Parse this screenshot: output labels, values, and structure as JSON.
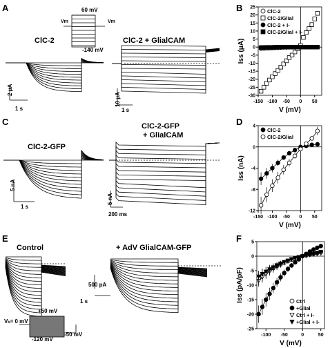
{
  "panels": {
    "A": {
      "letter": "A",
      "label_left": "ClC-2",
      "label_right": "ClC-2 + GlialCAM",
      "protocol": {
        "top": "60 mV",
        "bottom": "-140 mV",
        "vm_left": "Vm",
        "vm_right": "Vm"
      },
      "scale_left": {
        "y": "2 μA",
        "x": "1 s"
      },
      "scale_right": {
        "y": "10 μA",
        "x": "1 s"
      }
    },
    "B": {
      "letter": "B",
      "ylabel": "Iss (μA)",
      "xlabel": "V (mV)",
      "legend": [
        "ClC-2",
        "ClC-2/Glial",
        "ClC-2 + I-",
        "ClC-2/Glial + I-"
      ]
    },
    "C": {
      "letter": "C",
      "label_left": "ClC-2-GFP",
      "label_right_1": "ClC-2-GFP",
      "label_right_2": "+ GlialCAM",
      "scale_left": {
        "y": "5 nA",
        "x": "1 s"
      },
      "scale_right": {
        "y": "5 nA",
        "x": "200 ms"
      }
    },
    "D": {
      "letter": "D",
      "ylabel": "Iss (nA)",
      "xlabel": "V (mV)",
      "legend": [
        "ClC-2",
        "ClC-2/Glial"
      ]
    },
    "E": {
      "letter": "E",
      "label_left": "Control",
      "label_right": "+ AdV GlialCAM-GFP",
      "scale": {
        "y": "500 pA",
        "x": "1 s"
      },
      "protocol": {
        "hold": "Vₕ= 0 mV",
        "top": "+50 mV",
        "bottom": "-120 mV",
        "tail": "-50 mV"
      }
    },
    "F": {
      "letter": "F",
      "ylabel": "Iss (pA/pF)",
      "xlabel": "V (mV)",
      "legend": [
        "Ctrl",
        "+Glial",
        "Ctrl + I-",
        "+Glial + I-"
      ]
    }
  },
  "chart_data": [
    {
      "panel": "B",
      "type": "scatter",
      "x": [
        -140,
        -130,
        -120,
        -110,
        -100,
        -90,
        -80,
        -70,
        -60,
        -50,
        -40,
        -30,
        -20,
        -10,
        0,
        10,
        20,
        30,
        40,
        50,
        60
      ],
      "series": [
        {
          "name": "ClC-2",
          "marker": "open-circle",
          "values": [
            -1,
            -0.9,
            -0.8,
            -0.7,
            -0.6,
            -0.5,
            -0.4,
            -0.3,
            -0.2,
            -0.2,
            -0.1,
            -0.1,
            0,
            0,
            0,
            0,
            0,
            0,
            0,
            0,
            0
          ]
        },
        {
          "name": "ClC-2/Glial",
          "marker": "open-square",
          "values": [
            -27.5,
            -25,
            -22.5,
            -20.5,
            -18.5,
            -16.5,
            -14.5,
            -12.5,
            -10.5,
            -8.5,
            -6.5,
            -5,
            -3,
            -1,
            1,
            6,
            9,
            11.5,
            14,
            17.5,
            21
          ]
        },
        {
          "name": "ClC-2 + I-",
          "marker": "filled-circle",
          "values": [
            -0.2,
            -0.2,
            -0.1,
            -0.1,
            -0.1,
            -0.1,
            0,
            0,
            0,
            0,
            0,
            0,
            0,
            0,
            0,
            0,
            0,
            0,
            0,
            0,
            0
          ]
        },
        {
          "name": "ClC-2/Glial + I-",
          "marker": "filled-square",
          "values": [
            -0.3,
            -0.3,
            -0.2,
            -0.2,
            -0.2,
            -0.1,
            -0.1,
            -0.1,
            0,
            0,
            0,
            0,
            0,
            0,
            0,
            0,
            0,
            0,
            0,
            0,
            0
          ]
        }
      ],
      "xlim": [
        -150,
        75
      ],
      "ylim": [
        -30,
        25
      ],
      "xticks": [
        -150,
        -100,
        -50,
        0,
        50
      ],
      "yticks": [
        -30,
        -25,
        -20,
        -15,
        -10,
        -5,
        0,
        5,
        10,
        15,
        20,
        25
      ],
      "xlabel": "V (mV)",
      "ylabel": "Iss (μA)",
      "legend_position": "top-left"
    },
    {
      "panel": "D",
      "type": "line",
      "x": [
        -140,
        -120,
        -100,
        -80,
        -60,
        -40,
        -20,
        0,
        20,
        40,
        60
      ],
      "series": [
        {
          "name": "ClC-2",
          "marker": "filled-circle",
          "values": [
            -6,
            -5,
            -4,
            -3,
            -2,
            -1.2,
            -0.6,
            0,
            0.2,
            0.4,
            0.5
          ],
          "err": [
            1.2,
            1,
            0.8,
            0.6,
            0.4,
            0.3,
            0.2,
            0.1,
            0.1,
            0.1,
            0.1
          ]
        },
        {
          "name": "ClC-2/Glial",
          "marker": "open-circle",
          "values": [
            -11,
            -9,
            -7.3,
            -5.8,
            -4.3,
            -3,
            -1.7,
            -0.4,
            0.6,
            1.6,
            3
          ],
          "err": [
            1.6,
            1.4,
            1.2,
            1.1,
            0.9,
            0.7,
            0.5,
            0.3,
            0.3,
            0.4,
            0.8
          ]
        }
      ],
      "xlim": [
        -150,
        75
      ],
      "ylim": [
        -12,
        4
      ],
      "xticks": [
        -150,
        -100,
        -50,
        0,
        50
      ],
      "yticks": [
        -12,
        -8,
        -4,
        0,
        4
      ],
      "xlabel": "V (mV)",
      "ylabel": "Iss (nA)",
      "legend_position": "top-left"
    },
    {
      "panel": "F",
      "type": "line",
      "x": [
        -120,
        -110,
        -100,
        -90,
        -80,
        -70,
        -60,
        -50,
        -40,
        -30,
        -20,
        -10,
        0,
        10,
        20,
        30,
        40,
        50
      ],
      "series": [
        {
          "name": "Ctrl",
          "marker": "open-circle",
          "values": [
            -7.5,
            -6.5,
            -5.6,
            -4.8,
            -4.1,
            -3.4,
            -2.8,
            -2.2,
            -1.7,
            -1.2,
            -0.8,
            -0.4,
            0,
            0.3,
            0.6,
            0.9,
            1.1,
            1.4
          ],
          "err": [
            2.5,
            2.2,
            2,
            1.8,
            1.6,
            1.4,
            1.2,
            1,
            0.8,
            0.6,
            0.5,
            0.3,
            0.2,
            0.2,
            0.2,
            0.3,
            0.3,
            0.4
          ]
        },
        {
          "name": "+Glial",
          "marker": "filled-circle",
          "values": [
            -20,
            -17.5,
            -15,
            -13,
            -11,
            -9,
            -7.3,
            -5.8,
            -4.4,
            -3.2,
            -2.1,
            -1.1,
            0,
            0.8,
            1.6,
            2.3,
            2.9,
            3.5
          ],
          "err": [
            3,
            2.7,
            2.4,
            2.1,
            1.8,
            1.6,
            1.4,
            1.2,
            1,
            0.8,
            0.6,
            0.4,
            0.2,
            0.2,
            0.3,
            0.3,
            0.4,
            0.5
          ]
        },
        {
          "name": "Ctrl + I-",
          "marker": "open-triangle-down",
          "values": [
            -8.5,
            -7.3,
            -6.2,
            -5.2,
            -4.3,
            -3.5,
            -2.8,
            -2.1,
            -1.6,
            -1.1,
            -0.7,
            -0.3,
            0,
            0.2,
            0.4,
            0.6,
            0.8,
            1
          ],
          "err": [
            2,
            1.8,
            1.6,
            1.4,
            1.2,
            1,
            0.9,
            0.7,
            0.6,
            0.5,
            0.4,
            0.3,
            0.2,
            0.2,
            0.2,
            0.2,
            0.3,
            0.3
          ]
        },
        {
          "name": "+Glial + I-",
          "marker": "filled-triangle-down",
          "values": [
            -7,
            -6.1,
            -5.3,
            -4.5,
            -3.8,
            -3.1,
            -2.5,
            -2,
            -1.5,
            -1,
            -0.6,
            -0.3,
            0,
            0.3,
            0.6,
            0.9,
            1.2,
            1.5
          ],
          "err": [
            1.8,
            1.6,
            1.5,
            1.3,
            1.1,
            1,
            0.9,
            0.7,
            0.6,
            0.5,
            0.4,
            0.3,
            0.2,
            0.2,
            0.2,
            0.3,
            0.3,
            0.3
          ]
        }
      ],
      "xlim": [
        -125,
        60
      ],
      "ylim": [
        -25,
        5
      ],
      "xticks": [
        -100,
        -50,
        0,
        50
      ],
      "yticks": [
        -25,
        -20,
        -15,
        -10,
        -5,
        0,
        5
      ],
      "xlabel": "V (mV)",
      "ylabel": "Iss (pA/pF)",
      "legend_position": "bottom-right"
    }
  ]
}
